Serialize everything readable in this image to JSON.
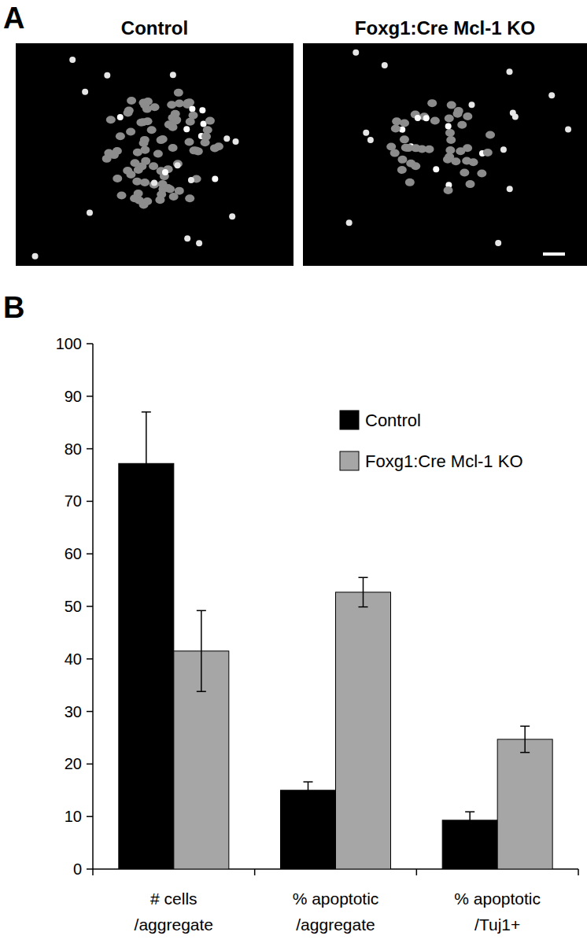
{
  "figure": {
    "panel_labels": [
      "A",
      "B"
    ],
    "image_titles": [
      "Control",
      "Foxg1:Cre Mcl-1 KO"
    ]
  },
  "chart_data": {
    "type": "bar",
    "categories": [
      "# cells\n/aggregate",
      "% apoptotic\n/aggregate",
      "% apoptotic\n/Tuj1+"
    ],
    "series": [
      {
        "name": "Control",
        "color": "#000000",
        "values": [
          77.2,
          15.0,
          9.3
        ],
        "errors": [
          9.8,
          1.6,
          1.6
        ]
      },
      {
        "name": "Foxg1:Cre Mcl-1 KO",
        "color": "#a6a6a6",
        "values": [
          41.5,
          52.7,
          24.7
        ],
        "errors": [
          7.7,
          2.8,
          2.5
        ]
      }
    ],
    "ylim": [
      0,
      100
    ],
    "yticks": [
      0,
      10,
      20,
      30,
      40,
      50,
      60,
      70,
      80,
      90,
      100
    ],
    "grid": false,
    "legend": "top-right"
  }
}
